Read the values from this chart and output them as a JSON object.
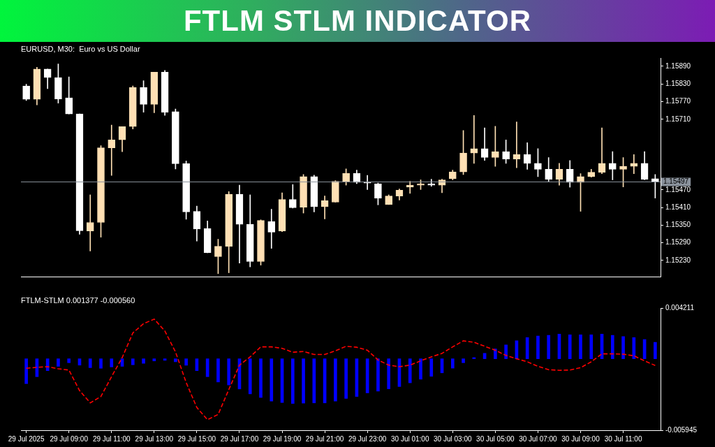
{
  "chart_data": [
    {
      "type": "candlestick",
      "title": "FTLM STLM INDICATOR",
      "subtitle": "EURUSD, M30:  Euro vs US Dollar",
      "categories": [
        null,
        null,
        null,
        null,
        null,
        null,
        null,
        null,
        null,
        null,
        null,
        null,
        null,
        null,
        null,
        null,
        null,
        null,
        null,
        null,
        null,
        null,
        null,
        null,
        null,
        null,
        null,
        null,
        null,
        null,
        null,
        null,
        null,
        null,
        null,
        null,
        null,
        null,
        null,
        null,
        null,
        null,
        null,
        null,
        null,
        null,
        null,
        null,
        null,
        null,
        null,
        null,
        null,
        null,
        null,
        null,
        null,
        null,
        null,
        null
      ],
      "ohlc": [
        [
          1.15823,
          1.15829,
          1.15774,
          1.15778
        ],
        [
          1.15778,
          1.15887,
          1.15759,
          1.15881
        ],
        [
          1.15881,
          1.15881,
          1.15814,
          1.15852
        ],
        [
          1.15852,
          1.15898,
          1.15765,
          1.15779
        ],
        [
          1.15783,
          1.15854,
          1.15728,
          1.15728
        ],
        [
          1.15728,
          1.15728,
          1.15319,
          1.15331
        ],
        [
          1.1533,
          1.15453,
          1.15262,
          1.15359
        ],
        [
          1.15359,
          1.1562,
          1.15309,
          1.15613
        ],
        [
          1.15613,
          1.1569,
          1.15519,
          1.1564
        ],
        [
          1.1564,
          1.15685,
          1.156,
          1.15685
        ],
        [
          1.15685,
          1.15823,
          1.15677,
          1.15818
        ],
        [
          1.15818,
          1.15841,
          1.15734,
          1.15761
        ],
        [
          1.15761,
          1.1587,
          1.15732,
          1.1587
        ],
        [
          1.1587,
          1.15876,
          1.15723,
          1.15734
        ],
        [
          1.15736,
          1.15745,
          1.15541,
          1.15559
        ],
        [
          1.15559,
          1.15568,
          1.1537,
          1.15395
        ],
        [
          1.15397,
          1.15415,
          1.15296,
          1.15337
        ],
        [
          1.15338,
          1.15364,
          1.15256,
          1.15256
        ],
        [
          1.15243,
          1.15302,
          1.15185,
          1.15278
        ],
        [
          1.15278,
          1.15464,
          1.15188,
          1.15455
        ],
        [
          1.15455,
          1.15486,
          1.15221,
          1.15353
        ],
        [
          1.15353,
          1.15453,
          1.15208,
          1.15226
        ],
        [
          1.15226,
          1.15368,
          1.15214,
          1.15366
        ],
        [
          1.15362,
          1.15404,
          1.15271,
          1.15326
        ],
        [
          1.1533,
          1.1546,
          1.15328,
          1.15437
        ],
        [
          1.15437,
          1.15488,
          1.15408,
          1.15409
        ],
        [
          1.15411,
          1.15522,
          1.15391,
          1.15515
        ],
        [
          1.15515,
          1.1552,
          1.15395,
          1.15413
        ],
        [
          1.15413,
          1.15449,
          1.15371,
          1.15433
        ],
        [
          1.15428,
          1.15501,
          1.15428,
          1.15499
        ],
        [
          1.15499,
          1.15541,
          1.15486,
          1.15526
        ],
        [
          1.15526,
          1.15537,
          1.15491,
          1.15495
        ],
        [
          1.15497,
          1.15519,
          1.15471,
          1.15493
        ],
        [
          1.15491,
          1.15493,
          1.15419,
          1.15442
        ],
        [
          1.1542,
          1.15453,
          1.1542,
          1.15449
        ],
        [
          1.15449,
          1.15473,
          1.15435,
          1.15469
        ],
        [
          1.15479,
          1.15499,
          1.15458,
          1.15486
        ],
        [
          1.15486,
          1.15504,
          1.15471,
          1.1549
        ],
        [
          1.1549,
          1.15506,
          1.15482,
          1.15486
        ],
        [
          1.15486,
          1.15506,
          1.1546,
          1.15504
        ],
        [
          1.15508,
          1.15537,
          1.15504,
          1.15531
        ],
        [
          1.15531,
          1.15672,
          1.15522,
          1.15595
        ],
        [
          1.15595,
          1.15723,
          1.1556,
          1.1561
        ],
        [
          1.1561,
          1.15681,
          1.1557,
          1.1558
        ],
        [
          1.1558,
          1.15686,
          1.1555,
          1.156
        ],
        [
          1.156,
          1.1564,
          1.1556,
          1.15575
        ],
        [
          1.15575,
          1.15701,
          1.15545,
          1.1559
        ],
        [
          1.1559,
          1.1563,
          1.1554,
          1.1556
        ],
        [
          1.1556,
          1.1561,
          1.15515,
          1.1554
        ],
        [
          1.1554,
          1.1558,
          1.15499,
          1.15506
        ],
        [
          1.15506,
          1.1556,
          1.15486,
          1.1554
        ],
        [
          1.1554,
          1.1557,
          1.15479,
          1.15495
        ],
        [
          1.15495,
          1.15525,
          1.15397,
          1.15515
        ],
        [
          1.15515,
          1.1554,
          1.15513,
          1.1553
        ],
        [
          1.1553,
          1.15681,
          1.15525,
          1.1556
        ],
        [
          1.1556,
          1.156,
          1.15504,
          1.1554
        ],
        [
          1.1554,
          1.1558,
          1.1548,
          1.1555
        ],
        [
          1.1555,
          1.1559,
          1.15525,
          1.1556
        ],
        [
          1.1556,
          1.156,
          1.15504,
          1.15506
        ],
        [
          1.15508,
          1.15522,
          1.15442,
          1.15497
        ]
      ],
      "colors": [
        "#ffffff",
        "#ffe0b4",
        "#ffffff",
        "#ffffff",
        "#ffffff",
        "#ffffff",
        "#ffe0b4",
        "#ffe0b4",
        "#ffe0b4",
        "#ffe0b4",
        "#ffe0b4",
        "#ffffff",
        "#ffe0b4",
        "#ffffff",
        "#ffffff",
        "#ffffff",
        "#ffffff",
        "#ffffff",
        "#ffe0b4",
        "#ffe0b4",
        "#ffffff",
        "#ffffff",
        "#ffe0b4",
        "#ffffff",
        "#ffe0b4",
        "#ffffff",
        "#ffe0b4",
        "#ffffff",
        "#ffe0b4",
        "#ffe0b4",
        "#ffe0b4",
        "#ffffff",
        "#ffffff",
        "#ffffff",
        "#ffe0b4",
        "#ffe0b4",
        "#ffe0b4",
        "#ffe0b4",
        "#ffffff",
        "#ffe0b4",
        "#ffe0b4",
        "#ffe0b4",
        "#ffe0b4",
        "#ffffff",
        "#ffe0b4",
        "#ffffff",
        "#ffe0b4",
        "#ffffff",
        "#ffffff",
        "#ffffff",
        "#ffe0b4",
        "#ffffff",
        "#ffe0b4",
        "#ffe0b4",
        "#ffe0b4",
        "#ffffff",
        "#ffe0b4",
        "#ffe0b4",
        "#ffffff",
        "#ffffff"
      ],
      "ylim": [
        1.15175,
        1.15918
      ],
      "yticks": [
        {
          "value": 1.1523,
          "label": "1.15230"
        },
        {
          "value": 1.1529,
          "label": "1.15290"
        },
        {
          "value": 1.1535,
          "label": "1.15350"
        },
        {
          "value": 1.1541,
          "label": "1.15410"
        },
        {
          "value": 1.1547,
          "label": "1.15470"
        },
        {
          "value": 1.1571,
          "label": "1.15710"
        },
        {
          "value": 1.1577,
          "label": "1.15770"
        },
        {
          "value": 1.1583,
          "label": "1.15830"
        },
        {
          "value": 1.1589,
          "label": "1.15890"
        }
      ],
      "ref_lines": [
        {
          "axis": "y",
          "value": 1.15497,
          "label": "1.15497",
          "color": "#8a929c"
        }
      ],
      "grid": false,
      "legend": false
    },
    {
      "type": "bar",
      "title": "FTLM-STLM 0.001377 -0.000560",
      "categories": [
        "29 Jul 2025",
        null,
        null,
        null,
        "29 Jul 09:00",
        null,
        null,
        null,
        "29 Jul 11:00",
        null,
        null,
        null,
        "29 Jul 13:00",
        null,
        null,
        null,
        "29 Jul 15:00",
        null,
        null,
        null,
        "29 Jul 17:00",
        null,
        null,
        null,
        "29 Jul 19:00",
        null,
        null,
        null,
        "29 Jul 21:00",
        null,
        null,
        null,
        "29 Jul 23:00",
        null,
        null,
        null,
        "30 Jul 01:00",
        null,
        null,
        null,
        "30 Jul 03:00",
        null,
        null,
        null,
        "30 Jul 05:00",
        null,
        null,
        null,
        "30 Jul 07:00",
        null,
        null,
        null,
        "30 Jul 09:00",
        null,
        null,
        null,
        "30 Jul 11:00",
        null,
        null,
        null
      ],
      "series": [
        {
          "type": "bar",
          "color": "#0000ff",
          "values": [
            -0.00207,
            -0.00149,
            -0.00099,
            -0.00063,
            -0.00033,
            -0.00053,
            -0.00074,
            -0.00079,
            -0.00068,
            -0.00063,
            -0.0005,
            -0.00038,
            -0.00018,
            -0.00013,
            -0.00025,
            -0.00054,
            -0.00099,
            -0.00149,
            -0.00193,
            -0.00218,
            -0.00251,
            -0.00292,
            -0.00322,
            -0.00352,
            -0.00364,
            -0.00372,
            -0.00369,
            -0.00367,
            -0.00367,
            -0.00352,
            -0.0033,
            -0.00314,
            -0.00284,
            -0.00269,
            -0.0025,
            -0.00231,
            -0.002,
            -0.0017,
            -0.00146,
            -0.00117,
            -0.00078,
            -0.00033,
            0.0001,
            0.00046,
            0.00082,
            0.00115,
            0.0015,
            0.00176,
            0.0019,
            0.00195,
            0.00205,
            0.002,
            0.002,
            0.002,
            0.00205,
            0.00195,
            0.00185,
            0.00176,
            0.0016,
            0.001377
          ]
        },
        {
          "type": "line",
          "color": "#ff0000",
          "line_style": "dashed",
          "marker": "none",
          "values": [
            -0.00079,
            -0.00071,
            -0.00066,
            -0.00083,
            -0.00094,
            -0.00265,
            -0.00367,
            -0.00314,
            -0.00149,
            0.0001,
            0.00215,
            0.00292,
            0.0033,
            0.00231,
            0.00057,
            -0.00198,
            -0.00405,
            -0.00507,
            -0.00463,
            -0.00256,
            -0.00053,
            0.00016,
            0.00099,
            0.00099,
            0.00087,
            0.00054,
            0.00061,
            0.00036,
            0.00036,
            0.00066,
            0.00104,
            0.00096,
            0.00071,
            -0.0001,
            -0.00053,
            -0.00066,
            -0.00053,
            -0.00017,
            0.00016,
            0.00045,
            0.00099,
            0.00149,
            0.00137,
            0.00104,
            0.00071,
            0.00028,
            0,
            -0.00025,
            -0.00063,
            -0.00091,
            -0.00096,
            -0.00094,
            -0.00074,
            -0.00025,
            0.00041,
            0.00041,
            0.00038,
            0.00025,
            -0.00017,
            -0.00056
          ]
        }
      ],
      "ylim": [
        -0.005945,
        0.004211
      ],
      "yticks": [
        -0.005945,
        0.004211
      ],
      "grid": false,
      "legend": false
    }
  ]
}
